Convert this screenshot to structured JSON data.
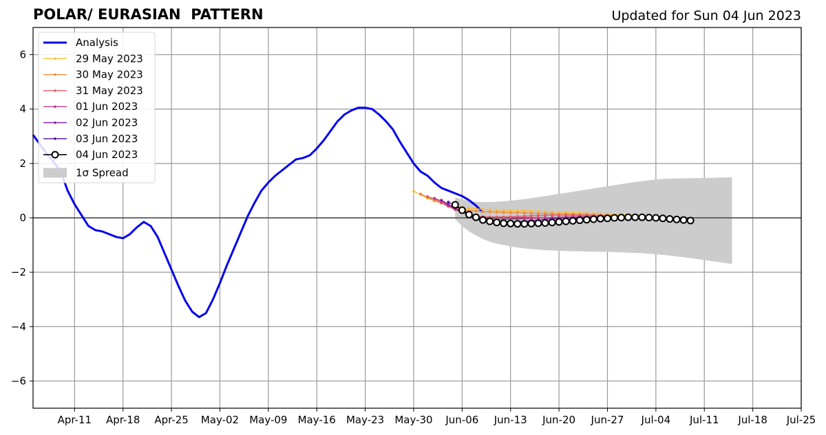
{
  "header": {
    "title": "POLAR/ EURASIAN  PATTERN",
    "updated": "Updated for Sun 04 Jun 2023"
  },
  "chart_data": {
    "type": "line",
    "title": "POLAR/ EURASIAN  PATTERN",
    "xlabel": "",
    "ylabel": "",
    "grid": true,
    "legend_position": "top-left",
    "xlim": [
      "2023-04-05",
      "2023-07-25"
    ],
    "ylim": [
      -7,
      7
    ],
    "y_ticks": [
      -6,
      -4,
      -2,
      0,
      2,
      4,
      6
    ],
    "y_tick_labels": [
      "−6",
      "−4",
      "−2",
      "0",
      "2",
      "4",
      "6"
    ],
    "x_ticks": [
      "2023-04-11",
      "2023-04-18",
      "2023-04-25",
      "2023-05-02",
      "2023-05-09",
      "2023-05-16",
      "2023-05-23",
      "2023-05-30",
      "2023-06-06",
      "2023-06-13",
      "2023-06-20",
      "2023-06-27",
      "2023-07-04",
      "2023-07-11",
      "2023-07-18",
      "2023-07-25"
    ],
    "x_tick_labels": [
      "Apr-11",
      "Apr-18",
      "Apr-25",
      "May-02",
      "May-09",
      "May-16",
      "May-23",
      "May-30",
      "Jun-06",
      "Jun-13",
      "Jun-20",
      "Jun-27",
      "Jul-04",
      "Jul-11",
      "Jul-18",
      "Jul-25"
    ],
    "analysis": {
      "name": "Analysis",
      "color": "#0000ee",
      "start": "2023-04-05",
      "values": [
        3.05,
        2.7,
        2.35,
        2.05,
        1.7,
        1.0,
        0.5,
        0.1,
        -0.3,
        -0.45,
        -0.5,
        -0.6,
        -0.7,
        -0.75,
        -0.6,
        -0.35,
        -0.15,
        -0.3,
        -0.7,
        -1.3,
        -1.9,
        -2.5,
        -3.05,
        -3.45,
        -3.65,
        -3.5,
        -3.0,
        -2.4,
        -1.75,
        -1.15,
        -0.55,
        0.05,
        0.55,
        1.0,
        1.3,
        1.55,
        1.75,
        1.95,
        2.15,
        2.2,
        2.3,
        2.55,
        2.85,
        3.2,
        3.55,
        3.8,
        3.95,
        4.05,
        4.05,
        4.0,
        3.8,
        3.55,
        3.25,
        2.8,
        2.4,
        2.0,
        1.7,
        1.55,
        1.3,
        1.1,
        1.0,
        0.9,
        0.8,
        0.65,
        0.45,
        0.2
      ]
    },
    "forecasts": [
      {
        "name": "29 May 2023",
        "color": "#f5bf3d",
        "start": "2023-05-30",
        "values": [
          0.98,
          0.85,
          0.72,
          0.62,
          0.55,
          0.48,
          0.43,
          0.38,
          0.35,
          0.33,
          0.31,
          0.3,
          0.29,
          0.28,
          0.27,
          0.26,
          0.26,
          0.25,
          0.24,
          0.23,
          0.22,
          0.21,
          0.2,
          0.19,
          0.18,
          0.17,
          0.16,
          0.15,
          0.14,
          0.13,
          0.12,
          0.11,
          0.1,
          0.08,
          0.07
        ]
      },
      {
        "name": "30 May 2023",
        "color": "#ef8c3f",
        "start": "2023-05-31",
        "values": [
          0.88,
          0.76,
          0.64,
          0.54,
          0.45,
          0.37,
          0.31,
          0.27,
          0.25,
          0.23,
          0.22,
          0.21,
          0.2,
          0.19,
          0.19,
          0.18,
          0.17,
          0.16,
          0.16,
          0.15,
          0.14,
          0.14,
          0.13,
          0.12,
          0.12,
          0.11,
          0.1,
          0.1,
          0.09,
          0.08,
          0.08,
          0.07,
          0.06,
          0.06,
          0.05
        ]
      },
      {
        "name": "31 May 2023",
        "color": "#de5a6c",
        "start": "2023-06-01",
        "values": [
          0.78,
          0.7,
          0.55,
          0.42,
          0.3,
          0.2,
          0.12,
          0.07,
          0.04,
          0.03,
          0.03,
          0.03,
          0.04,
          0.05,
          0.06,
          0.07,
          0.08,
          0.09,
          0.1,
          0.1,
          0.1,
          0.1,
          0.1,
          0.1,
          0.09,
          0.09,
          0.08,
          0.08,
          0.07,
          0.07,
          0.06,
          0.05,
          0.05,
          0.04,
          0.03
        ]
      },
      {
        "name": "01 Jun 2023",
        "color": "#b83a8a",
        "start": "2023-06-02",
        "values": [
          0.72,
          0.62,
          0.45,
          0.32,
          0.2,
          0.1,
          0.03,
          -0.02,
          -0.05,
          -0.06,
          -0.06,
          -0.05,
          -0.04,
          -0.03,
          -0.02,
          -0.01,
          0.0,
          0.01,
          0.02,
          0.03,
          0.04,
          0.05,
          0.05,
          0.05,
          0.05,
          0.05,
          0.04,
          0.04,
          0.03,
          0.03,
          0.02,
          0.02,
          0.01,
          0.0,
          -0.01
        ]
      },
      {
        "name": "02 Jun 2023",
        "color": "#8a1fa8",
        "start": "2023-06-03",
        "values": [
          0.65,
          0.5,
          0.35,
          0.22,
          0.12,
          0.02,
          -0.05,
          -0.1,
          -0.13,
          -0.15,
          -0.15,
          -0.14,
          -0.12,
          -0.1,
          -0.08,
          -0.06,
          -0.04,
          -0.02,
          -0.01,
          0.0,
          0.01,
          0.02,
          0.03,
          0.03,
          0.03,
          0.03,
          0.03,
          0.02,
          0.02,
          0.01,
          0.0,
          -0.01,
          -0.02,
          -0.03,
          -0.04
        ]
      },
      {
        "name": "03 Jun 2023",
        "color": "#4a0fa0",
        "start": "2023-06-04",
        "values": [
          0.58,
          0.45,
          0.3,
          0.15,
          0.05,
          -0.05,
          -0.12,
          -0.17,
          -0.2,
          -0.21,
          -0.21,
          -0.2,
          -0.18,
          -0.16,
          -0.14,
          -0.12,
          -0.1,
          -0.08,
          -0.06,
          -0.04,
          -0.03,
          -0.02,
          -0.01,
          0.0,
          0.0,
          0.0,
          0.0,
          -0.01,
          -0.02,
          -0.03,
          -0.04,
          -0.05,
          -0.06,
          -0.07,
          -0.08
        ]
      },
      {
        "name": "04 Jun 2023",
        "color": "#000000",
        "start": "2023-06-05",
        "values": [
          0.48,
          0.28,
          0.12,
          0.02,
          -0.08,
          -0.13,
          -0.17,
          -0.2,
          -0.21,
          -0.22,
          -0.22,
          -0.21,
          -0.2,
          -0.19,
          -0.17,
          -0.15,
          -0.13,
          -0.11,
          -0.09,
          -0.07,
          -0.05,
          -0.03,
          -0.02,
          0.0,
          0.01,
          0.02,
          0.02,
          0.02,
          0.01,
          0.0,
          -0.02,
          -0.04,
          -0.06,
          -0.08,
          -0.1
        ]
      }
    ],
    "spread": {
      "name": "1σ Spread",
      "color": "#cccccc",
      "start": "2023-06-05",
      "upper": [
        0.75,
        0.68,
        0.62,
        0.59,
        0.58,
        0.58,
        0.59,
        0.61,
        0.63,
        0.66,
        0.69,
        0.72,
        0.76,
        0.8,
        0.84,
        0.88,
        0.92,
        0.96,
        1.0,
        1.04,
        1.08,
        1.12,
        1.16,
        1.2,
        1.24,
        1.28,
        1.32,
        1.35,
        1.38,
        1.41,
        1.43,
        1.44,
        1.45,
        1.45,
        1.46,
        1.46,
        1.47,
        1.47,
        1.48,
        1.48,
        1.49
      ],
      "lower": [
        -0.05,
        -0.3,
        -0.5,
        -0.65,
        -0.78,
        -0.88,
        -0.95,
        -1.0,
        -1.05,
        -1.09,
        -1.12,
        -1.15,
        -1.17,
        -1.19,
        -1.2,
        -1.21,
        -1.22,
        -1.23,
        -1.23,
        -1.24,
        -1.24,
        -1.25,
        -1.25,
        -1.26,
        -1.27,
        -1.28,
        -1.29,
        -1.3,
        -1.32,
        -1.34,
        -1.36,
        -1.39,
        -1.42,
        -1.45,
        -1.48,
        -1.52,
        -1.55,
        -1.59,
        -1.62,
        -1.66,
        -1.7
      ]
    }
  }
}
